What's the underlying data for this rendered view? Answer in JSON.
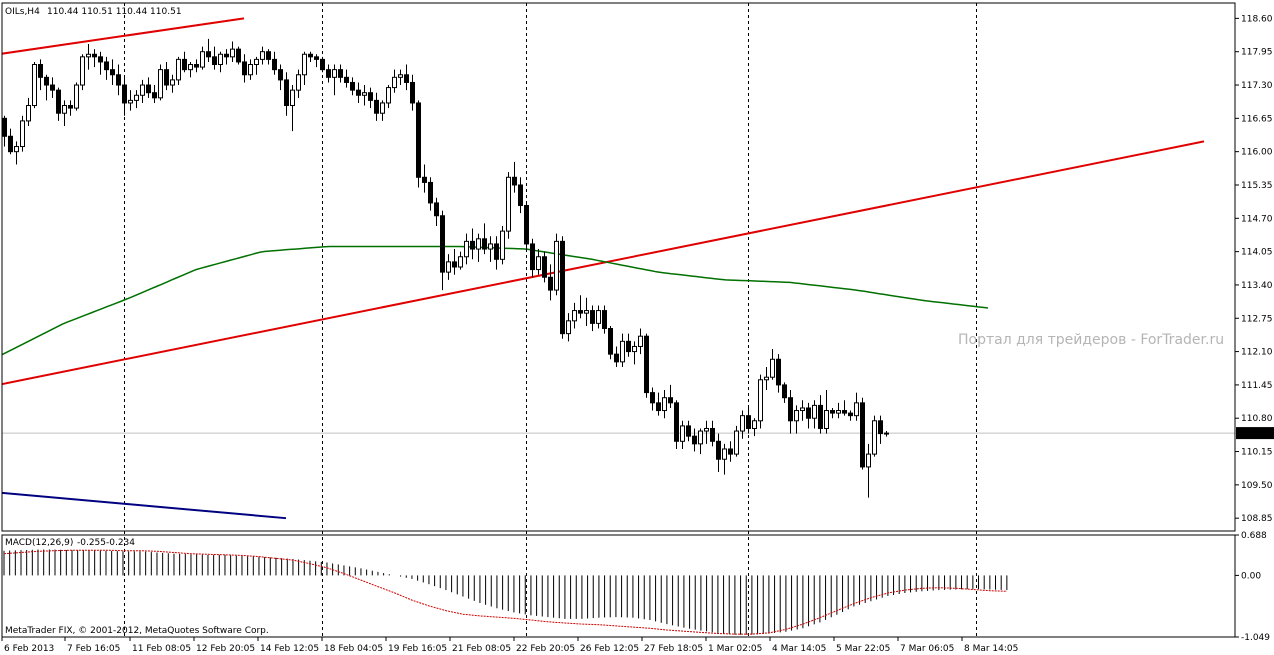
{
  "header": {
    "symbol_label": "OILs,H4",
    "ohlc": "110.44 110.51 110.44 110.51"
  },
  "watermark": "Портал для трейдеров - ForTrader.ru",
  "footer": {
    "copyright": "MetaTrader FIX, © 2001-2012, MetaQuotes Software Corp."
  },
  "colors": {
    "candle_bull": "#ffffff",
    "candle_bear": "#000000",
    "moving_average": "#007000",
    "trend_lines": "#e00000",
    "lower_line": "#000080",
    "macd_signal": "#cc0000",
    "price_line": "#c0c0c0"
  },
  "chart_data": [
    {
      "type": "candlestick",
      "symbol": "OILs",
      "timeframe": "H4",
      "ylim": [
        108.6,
        118.9
      ],
      "y_ticks": [
        "118.60",
        "117.95",
        "117.30",
        "116.65",
        "116.00",
        "115.35",
        "114.70",
        "114.05",
        "113.40",
        "112.75",
        "112.10",
        "111.45",
        "110.80",
        "110.15",
        "109.50",
        "108.85"
      ],
      "current_price": "110.51",
      "x_ticks": [
        "6 Feb 2013",
        "7 Feb 16:05",
        "11 Feb 08:05",
        "12 Feb 20:05",
        "14 Feb 12:05",
        "18 Feb 04:05",
        "19 Feb 16:05",
        "21 Feb 08:05",
        "22 Feb 20:05",
        "26 Feb 12:05",
        "27 Feb 18:05",
        "1 Mar 02:05",
        "4 Mar 14:05",
        "5 Mar 22:05",
        "7 Mar 06:05",
        "8 Mar 14:05"
      ],
      "day_separators_at_bar": [
        20,
        53,
        87,
        124,
        162
      ],
      "candles": [
        [
          116.65,
          116.7,
          116.1,
          116.3
        ],
        [
          116.3,
          116.45,
          115.95,
          116.0
        ],
        [
          116.0,
          116.2,
          115.75,
          116.1
        ],
        [
          116.1,
          116.7,
          116.0,
          116.6
        ],
        [
          116.6,
          117.05,
          116.5,
          116.9
        ],
        [
          116.9,
          117.75,
          116.85,
          117.7
        ],
        [
          117.7,
          117.8,
          117.2,
          117.45
        ],
        [
          117.45,
          117.5,
          117.0,
          117.3
        ],
        [
          117.3,
          117.45,
          117.05,
          117.2
        ],
        [
          117.2,
          117.25,
          116.6,
          116.75
        ],
        [
          116.75,
          117.0,
          116.5,
          116.9
        ],
        [
          116.9,
          117.0,
          116.7,
          116.85
        ],
        [
          116.85,
          117.35,
          116.8,
          117.3
        ],
        [
          117.3,
          117.9,
          117.2,
          117.85
        ],
        [
          117.85,
          118.1,
          117.6,
          117.9
        ],
        [
          117.9,
          118.0,
          117.65,
          117.85
        ],
        [
          117.85,
          117.95,
          117.5,
          117.75
        ],
        [
          117.75,
          117.85,
          117.4,
          117.6
        ],
        [
          117.6,
          117.8,
          117.3,
          117.5
        ],
        [
          117.5,
          117.7,
          117.1,
          117.3
        ],
        [
          117.3,
          117.45,
          116.7,
          116.95
        ],
        [
          116.95,
          117.2,
          116.8,
          117.0
        ],
        [
          117.0,
          117.2,
          116.85,
          117.1
        ],
        [
          117.1,
          117.4,
          116.95,
          117.3
        ],
        [
          117.3,
          117.45,
          117.05,
          117.15
        ],
        [
          117.15,
          117.3,
          116.95,
          117.05
        ],
        [
          117.05,
          117.7,
          117.0,
          117.6
        ],
        [
          117.6,
          117.75,
          117.2,
          117.3
        ],
        [
          117.3,
          117.5,
          117.15,
          117.4
        ],
        [
          117.4,
          117.85,
          117.3,
          117.8
        ],
        [
          117.8,
          117.95,
          117.55,
          117.6
        ],
        [
          117.6,
          117.75,
          117.45,
          117.7
        ],
        [
          117.7,
          117.8,
          117.55,
          117.65
        ],
        [
          117.65,
          118.05,
          117.6,
          117.95
        ],
        [
          117.95,
          118.2,
          117.75,
          117.85
        ],
        [
          117.85,
          118.05,
          117.6,
          117.7
        ],
        [
          117.7,
          117.95,
          117.55,
          117.9
        ],
        [
          117.9,
          118.0,
          117.7,
          117.85
        ],
        [
          117.85,
          118.15,
          117.75,
          118.0
        ],
        [
          118.0,
          118.05,
          117.7,
          117.75
        ],
        [
          117.75,
          117.9,
          117.35,
          117.5
        ],
        [
          117.5,
          117.8,
          117.4,
          117.7
        ],
        [
          117.7,
          117.85,
          117.5,
          117.8
        ],
        [
          117.8,
          118.05,
          117.7,
          117.95
        ],
        [
          117.95,
          118.0,
          117.7,
          117.8
        ],
        [
          117.8,
          117.95,
          117.5,
          117.6
        ],
        [
          117.6,
          117.7,
          117.2,
          117.4
        ],
        [
          117.4,
          117.55,
          116.7,
          116.9
        ],
        [
          116.9,
          117.3,
          116.4,
          117.2
        ],
        [
          117.2,
          117.6,
          117.05,
          117.5
        ],
        [
          117.5,
          117.95,
          117.3,
          117.9
        ],
        [
          117.9,
          117.95,
          117.75,
          117.85
        ],
        [
          117.85,
          117.9,
          117.65,
          117.8
        ],
        [
          117.8,
          117.85,
          117.55,
          117.6
        ],
        [
          117.6,
          117.7,
          117.35,
          117.45
        ],
        [
          117.45,
          117.7,
          117.1,
          117.6
        ],
        [
          117.6,
          117.7,
          117.35,
          117.45
        ],
        [
          117.45,
          117.6,
          117.25,
          117.35
        ],
        [
          117.35,
          117.45,
          117.1,
          117.2
        ],
        [
          117.2,
          117.35,
          116.95,
          117.1
        ],
        [
          117.1,
          117.3,
          116.9,
          117.15
        ],
        [
          117.15,
          117.25,
          116.85,
          117.0
        ],
        [
          117.0,
          117.15,
          116.6,
          116.75
        ],
        [
          116.75,
          117.0,
          116.6,
          116.95
        ],
        [
          116.95,
          117.3,
          116.85,
          117.25
        ],
        [
          117.25,
          117.6,
          117.15,
          117.45
        ],
        [
          117.45,
          117.6,
          117.3,
          117.5
        ],
        [
          117.5,
          117.7,
          117.2,
          117.35
        ],
        [
          117.35,
          117.5,
          116.8,
          116.95
        ],
        [
          116.95,
          117.0,
          115.3,
          115.5
        ],
        [
          115.5,
          115.75,
          115.2,
          115.4
        ],
        [
          115.4,
          115.5,
          114.85,
          115.0
        ],
        [
          115.0,
          115.1,
          114.55,
          114.75
        ],
        [
          114.75,
          114.85,
          113.3,
          113.65
        ],
        [
          113.65,
          114.0,
          113.5,
          113.85
        ],
        [
          113.85,
          114.1,
          113.6,
          113.75
        ],
        [
          113.75,
          114.05,
          113.7,
          113.95
        ],
        [
          113.95,
          114.4,
          113.8,
          114.25
        ],
        [
          114.25,
          114.5,
          113.9,
          114.1
        ],
        [
          114.1,
          114.4,
          113.85,
          114.3
        ],
        [
          114.3,
          114.6,
          114.0,
          114.1
        ],
        [
          114.1,
          114.35,
          113.85,
          114.2
        ],
        [
          114.2,
          114.35,
          113.7,
          113.9
        ],
        [
          113.9,
          114.55,
          113.8,
          114.45
        ],
        [
          114.45,
          115.6,
          114.3,
          115.5
        ],
        [
          115.5,
          115.8,
          115.2,
          115.35
        ],
        [
          115.35,
          115.5,
          114.8,
          114.95
        ],
        [
          114.95,
          115.0,
          114.05,
          114.2
        ],
        [
          114.2,
          114.3,
          113.55,
          113.7
        ],
        [
          113.7,
          114.1,
          113.6,
          113.95
        ],
        [
          113.95,
          114.05,
          113.45,
          113.55
        ],
        [
          113.55,
          113.8,
          113.1,
          113.3
        ],
        [
          113.3,
          114.4,
          113.2,
          114.25
        ],
        [
          114.25,
          114.35,
          112.35,
          112.45
        ],
        [
          112.45,
          112.85,
          112.3,
          112.7
        ],
        [
          112.7,
          113.05,
          112.55,
          112.9
        ],
        [
          112.9,
          113.2,
          112.75,
          112.85
        ],
        [
          112.85,
          113.15,
          112.6,
          112.9
        ],
        [
          112.9,
          113.0,
          112.5,
          112.65
        ],
        [
          112.65,
          113.0,
          112.55,
          112.9
        ],
        [
          112.9,
          113.0,
          112.45,
          112.55
        ],
        [
          112.55,
          112.6,
          111.95,
          112.05
        ],
        [
          112.05,
          112.2,
          111.8,
          111.9
        ],
        [
          111.9,
          112.45,
          111.8,
          112.3
        ],
        [
          112.3,
          112.45,
          112.0,
          112.1
        ],
        [
          112.1,
          112.3,
          111.85,
          112.2
        ],
        [
          112.2,
          112.55,
          112.05,
          112.4
        ],
        [
          112.4,
          112.45,
          111.2,
          111.3
        ],
        [
          111.3,
          111.4,
          110.95,
          111.1
        ],
        [
          111.1,
          111.3,
          110.85,
          110.95
        ],
        [
          110.95,
          111.35,
          110.8,
          111.2
        ],
        [
          111.2,
          111.45,
          111.0,
          111.1
        ],
        [
          111.1,
          111.15,
          110.2,
          110.35
        ],
        [
          110.35,
          110.75,
          110.2,
          110.65
        ],
        [
          110.65,
          110.75,
          110.35,
          110.45
        ],
        [
          110.45,
          110.6,
          110.15,
          110.3
        ],
        [
          110.3,
          110.6,
          110.1,
          110.55
        ],
        [
          110.55,
          110.75,
          110.3,
          110.6
        ],
        [
          110.6,
          110.75,
          110.25,
          110.35
        ],
        [
          110.35,
          110.5,
          109.75,
          110.0
        ],
        [
          110.0,
          110.3,
          109.7,
          110.2
        ],
        [
          110.2,
          110.35,
          109.95,
          110.1
        ],
        [
          110.1,
          110.65,
          110.05,
          110.55
        ],
        [
          110.55,
          110.95,
          110.4,
          110.85
        ],
        [
          110.85,
          111.0,
          110.5,
          110.6
        ],
        [
          110.6,
          110.8,
          110.45,
          110.75
        ],
        [
          110.75,
          111.65,
          110.6,
          111.55
        ],
        [
          111.55,
          111.8,
          111.35,
          111.6
        ],
        [
          111.6,
          112.15,
          111.55,
          111.95
        ],
        [
          111.95,
          112.05,
          111.3,
          111.45
        ],
        [
          111.45,
          111.5,
          111.1,
          111.2
        ],
        [
          111.2,
          111.35,
          110.5,
          110.75
        ],
        [
          110.75,
          111.05,
          110.5,
          110.95
        ],
        [
          110.95,
          111.15,
          110.75,
          111.0
        ],
        [
          111.0,
          111.1,
          110.6,
          110.8
        ],
        [
          110.8,
          111.15,
          110.6,
          111.05
        ],
        [
          111.05,
          111.25,
          110.5,
          110.6
        ],
        [
          110.6,
          111.35,
          110.5,
          110.95
        ],
        [
          110.95,
          111.0,
          110.8,
          110.9
        ],
        [
          110.9,
          111.1,
          110.8,
          110.95
        ],
        [
          110.95,
          111.15,
          110.85,
          110.9
        ],
        [
          110.9,
          110.95,
          110.75,
          110.85
        ],
        [
          110.85,
          111.3,
          110.75,
          111.1
        ],
        [
          111.1,
          111.2,
          109.8,
          109.85
        ],
        [
          109.85,
          110.3,
          109.25,
          110.1
        ],
        [
          110.1,
          110.85,
          110.05,
          110.75
        ],
        [
          110.75,
          110.85,
          110.3,
          110.5
        ],
        [
          110.5,
          110.55,
          110.44,
          110.51
        ]
      ],
      "moving_average": [
        112.0,
        112.65,
        113.15,
        113.7,
        114.05,
        114.15,
        114.15,
        114.15,
        114.1,
        113.9,
        113.65,
        113.5,
        113.45,
        113.3,
        113.1,
        112.95
      ],
      "moving_average_end_bar": 164,
      "trend_lines": [
        {
          "from": [
            -1,
            117.9
          ],
          "to": [
            40,
            118.6
          ]
        },
        {
          "from": [
            -1,
            111.45
          ],
          "to": [
            200,
            116.2
          ]
        },
        {
          "from": [
            -1,
            109.35
          ],
          "to": [
            47,
            108.85
          ]
        }
      ]
    },
    {
      "type": "histogram",
      "title": "MACD(12,26,9)",
      "value_labels": [
        "-0.255",
        "-0.234"
      ],
      "ylim": [
        -1.049,
        0.688
      ],
      "y_ticks": [
        "0.688",
        "0.00",
        "-1.049"
      ],
      "histogram": [
        0.42,
        0.43,
        0.44,
        0.44,
        0.43,
        0.43,
        0.42,
        0.41,
        0.41,
        0.39,
        0.37,
        0.36,
        0.35,
        0.35,
        0.33,
        0.32,
        0.3,
        0.28,
        0.25,
        0.22,
        0.17,
        0.12,
        0.06,
        0.0,
        -0.06,
        -0.15,
        -0.25,
        -0.36,
        -0.47,
        -0.56,
        -0.63,
        -0.68,
        -0.71,
        -0.74,
        -0.74,
        -0.72,
        -0.71,
        -0.72,
        -0.76,
        -0.83,
        -0.89,
        -0.94,
        -0.98,
        -1.01,
        -1.01,
        -0.99,
        -0.96,
        -0.9,
        -0.8,
        -0.67,
        -0.53,
        -0.44,
        -0.35,
        -0.3,
        -0.27,
        -0.25,
        -0.24,
        -0.23,
        -0.24,
        -0.25
      ],
      "signal": [
        0.37,
        0.39,
        0.41,
        0.42,
        0.43,
        0.43,
        0.43,
        0.42,
        0.42,
        0.41,
        0.39,
        0.37,
        0.36,
        0.35,
        0.34,
        0.32,
        0.29,
        0.26,
        0.2,
        0.13,
        0.03,
        -0.08,
        -0.19,
        -0.3,
        -0.42,
        -0.52,
        -0.6,
        -0.66,
        -0.69,
        -0.71,
        -0.73,
        -0.76,
        -0.79,
        -0.81,
        -0.83,
        -0.84,
        -0.86,
        -0.88,
        -0.9,
        -0.93,
        -0.95,
        -0.97,
        -0.99,
        -1.0,
        -1.0,
        -0.98,
        -0.92,
        -0.83,
        -0.72,
        -0.6,
        -0.48,
        -0.38,
        -0.3,
        -0.25,
        -0.22,
        -0.21,
        -0.22,
        -0.24,
        -0.26,
        -0.27
      ]
    }
  ]
}
